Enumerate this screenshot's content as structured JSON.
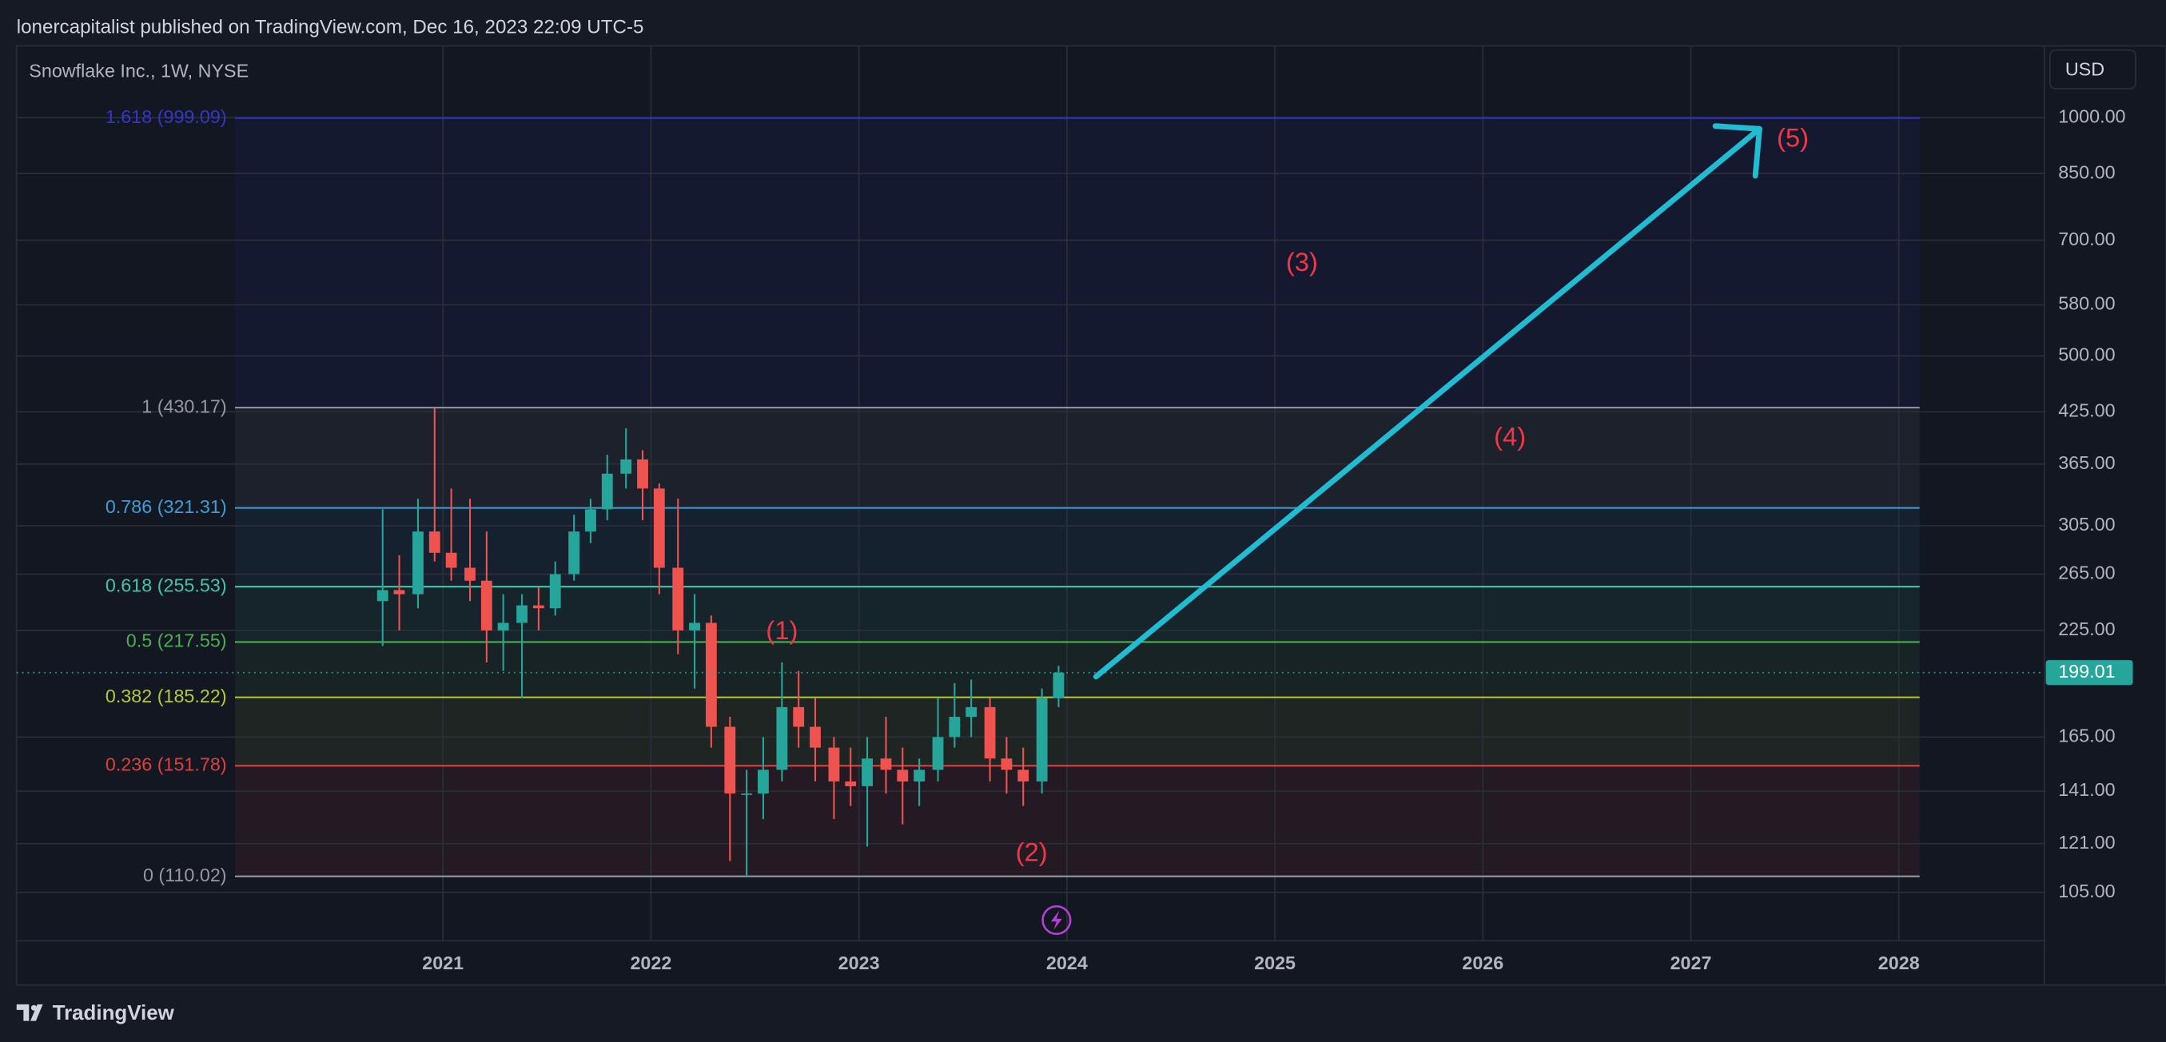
{
  "chart_data": {
    "type": "candlestick",
    "header": "lonercapitalist published on TradingView.com, Dec 16, 2023 22:09 UTC-5",
    "title": "Snowflake Inc., 1W, NYSE",
    "currency": "USD",
    "brand": "TradingView",
    "log_scale": true,
    "grid": true,
    "up_color": "#26a69a",
    "down_color": "#ef5350",
    "x": [
      2020.71,
      2020.79,
      2020.88,
      2020.96,
      2021.04,
      2021.13,
      2021.21,
      2021.29,
      2021.38,
      2021.46,
      2021.54,
      2021.63,
      2021.71,
      2021.79,
      2021.88,
      2021.96,
      2022.04,
      2022.13,
      2022.21,
      2022.29,
      2022.38,
      2022.46,
      2022.54,
      2022.63,
      2022.71,
      2022.79,
      2022.88,
      2022.96,
      2023.04,
      2023.13,
      2023.21,
      2023.29,
      2023.38,
      2023.46,
      2023.54,
      2023.63,
      2023.71,
      2023.79,
      2023.88,
      2023.96
    ],
    "open": [
      245,
      253,
      250,
      300,
      282,
      270,
      260,
      225,
      230,
      242,
      240,
      265,
      300,
      320,
      355,
      370,
      340,
      270,
      225,
      230,
      170,
      140,
      140,
      150,
      180,
      170,
      160,
      145,
      143,
      155,
      150,
      145,
      150,
      165,
      175,
      180,
      155,
      150,
      145,
      185
    ],
    "high": [
      320,
      280,
      330,
      430,
      340,
      330,
      300,
      250,
      250,
      255,
      275,
      315,
      330,
      375,
      405,
      380,
      345,
      330,
      250,
      235,
      175,
      150,
      165,
      205,
      200,
      185,
      165,
      160,
      165,
      175,
      160,
      155,
      185,
      193,
      195,
      185,
      165,
      160,
      190,
      203
    ],
    "low": [
      215,
      225,
      240,
      275,
      260,
      245,
      205,
      200,
      185,
      225,
      235,
      260,
      290,
      310,
      340,
      310,
      250,
      210,
      190,
      160,
      115,
      110,
      130,
      145,
      160,
      145,
      130,
      135,
      120,
      140,
      128,
      135,
      145,
      160,
      165,
      145,
      140,
      135,
      140,
      180
    ],
    "close": [
      253,
      250,
      300,
      282,
      270,
      260,
      225,
      230,
      242,
      240,
      265,
      300,
      320,
      355,
      370,
      340,
      270,
      225,
      230,
      170,
      140,
      140,
      150,
      180,
      170,
      160,
      145,
      143,
      155,
      150,
      145,
      150,
      165,
      175,
      180,
      155,
      150,
      145,
      185,
      199.01
    ],
    "last_price": 199.01,
    "xlim": [
      2018.95,
      2028.7
    ],
    "ylim": [
      91.2,
      1232
    ],
    "xticks": [
      2021,
      2022,
      2023,
      2024,
      2025,
      2026,
      2027,
      2028
    ],
    "yticks": [
      {
        "value": 1000,
        "label": "1000.00"
      },
      {
        "value": 850,
        "label": "850.00"
      },
      {
        "value": 700,
        "label": "700.00"
      },
      {
        "value": 580,
        "label": "580.00"
      },
      {
        "value": 500,
        "label": "500.00"
      },
      {
        "value": 425,
        "label": "425.00"
      },
      {
        "value": 365,
        "label": "365.00"
      },
      {
        "value": 305,
        "label": "305.00"
      },
      {
        "value": 265,
        "label": "265.00"
      },
      {
        "value": 225,
        "label": "225.00"
      },
      {
        "value": 165,
        "label": "165.00"
      },
      {
        "value": 141,
        "label": "141.00"
      },
      {
        "value": 121,
        "label": "121.00"
      },
      {
        "value": 105,
        "label": "105.00"
      }
    ],
    "fib_xlim": [
      2020.0,
      2028.1
    ],
    "fib_levels": [
      {
        "label": "1.618 (999.09)",
        "value": 999.09,
        "color": "#3535c8"
      },
      {
        "label": "1 (430.17)",
        "value": 430.17,
        "color": "#9598a1"
      },
      {
        "label": "0.786 (321.31)",
        "value": 321.31,
        "color": "#3d9fd6"
      },
      {
        "label": "0.618 (255.53)",
        "value": 255.53,
        "color": "#3fc6a8"
      },
      {
        "label": "0.5 (217.55)",
        "value": 217.55,
        "color": "#4caf50"
      },
      {
        "label": "0.382 (185.22)",
        "value": 185.22,
        "color": "#b5c934"
      },
      {
        "label": "0.236 (151.78)",
        "value": 151.78,
        "color": "#e0403c"
      },
      {
        "label": "0 (110.02)",
        "value": 110.02,
        "color": "#9598a1"
      }
    ],
    "annotations": [
      {
        "text": "(1)",
        "x": 2022.63,
        "y": 223.7
      },
      {
        "text": "(2)",
        "x": 2023.83,
        "y": 117.4
      },
      {
        "text": "(3)",
        "x": 2025.13,
        "y": 653
      },
      {
        "text": "(4)",
        "x": 2026.13,
        "y": 393
      },
      {
        "text": "(5)",
        "x": 2027.49,
        "y": 938
      }
    ],
    "annotation_color": "#f23645",
    "arrow": {
      "x": [
        2024.14,
        2027.33
      ],
      "y": [
        196.7,
        968
      ],
      "color": "#1fbcd2"
    }
  }
}
